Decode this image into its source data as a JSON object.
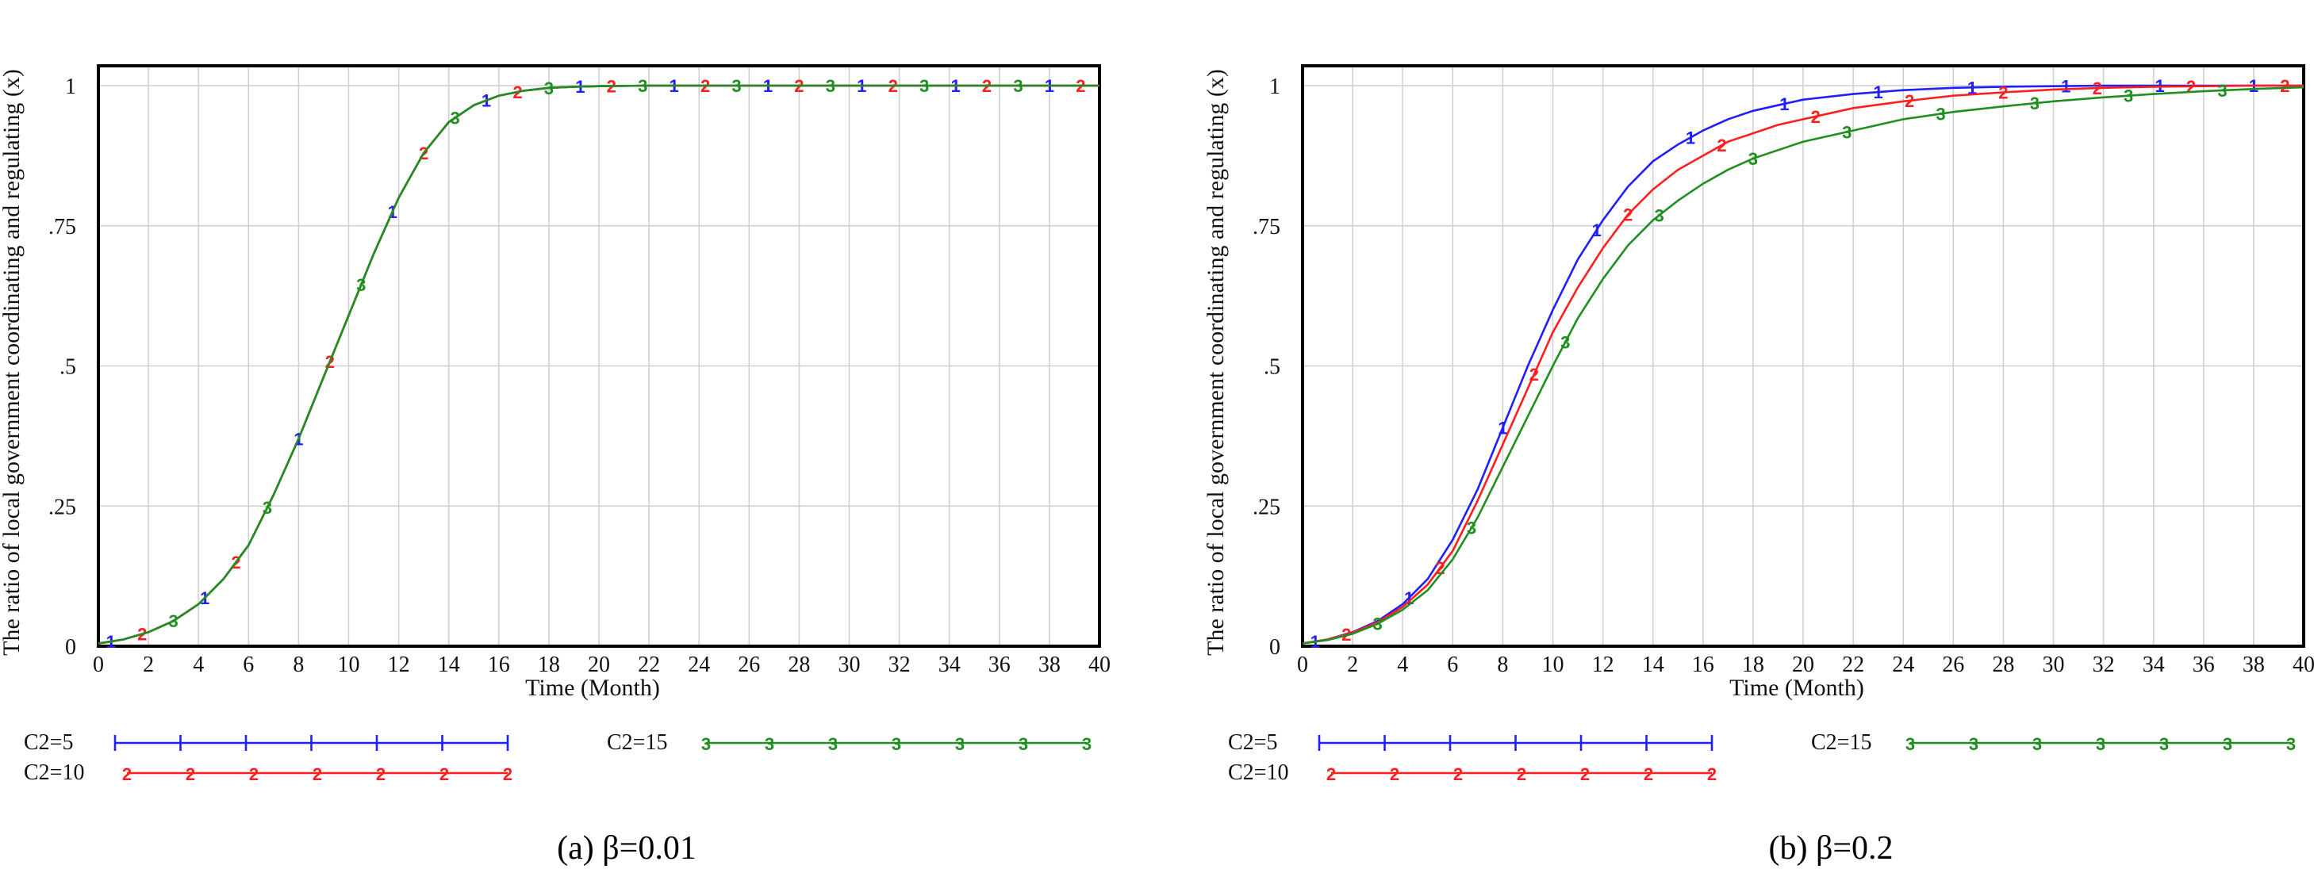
{
  "chart_data": [
    {
      "type": "line",
      "caption": "(a) β=0.01",
      "xlabel": "Time (Month)",
      "ylabel": "The ratio of local government coordinating and regulating (x)",
      "xlim": [
        0,
        40
      ],
      "ylim": [
        0,
        1
      ],
      "x_ticks": [
        "0",
        "2",
        "4",
        "6",
        "8",
        "10",
        "12",
        "14",
        "16",
        "18",
        "20",
        "22",
        "24",
        "26",
        "28",
        "30",
        "32",
        "34",
        "36",
        "38",
        "40"
      ],
      "y_ticks": [
        "0",
        ".25",
        ".5",
        ".75",
        "1"
      ],
      "grid": true,
      "legend_position": "bottom",
      "series": [
        {
          "name": "C2=5",
          "marker": "1",
          "color": "#1f1fff",
          "x": [
            0,
            1,
            2,
            3,
            4,
            5,
            6,
            7,
            8,
            9,
            10,
            11,
            12,
            13,
            14,
            15,
            16,
            17,
            18,
            19,
            20,
            22,
            24,
            26,
            28,
            30,
            32,
            34,
            36,
            38,
            40
          ],
          "y": [
            0.005,
            0.012,
            0.025,
            0.045,
            0.075,
            0.12,
            0.18,
            0.27,
            0.37,
            0.48,
            0.59,
            0.7,
            0.8,
            0.88,
            0.935,
            0.965,
            0.982,
            0.991,
            0.996,
            0.998,
            0.999,
            1,
            1,
            1,
            1,
            1,
            1,
            1,
            1,
            1,
            1
          ]
        },
        {
          "name": "C2=10",
          "marker": "2",
          "color": "#ff1f1f",
          "x": [
            0,
            1,
            2,
            3,
            4,
            5,
            6,
            7,
            8,
            9,
            10,
            11,
            12,
            13,
            14,
            15,
            16,
            17,
            18,
            19,
            20,
            22,
            24,
            26,
            28,
            30,
            32,
            34,
            36,
            38,
            40
          ],
          "y": [
            0.005,
            0.012,
            0.025,
            0.045,
            0.075,
            0.12,
            0.18,
            0.27,
            0.37,
            0.48,
            0.59,
            0.7,
            0.8,
            0.88,
            0.935,
            0.965,
            0.982,
            0.991,
            0.996,
            0.998,
            0.999,
            1,
            1,
            1,
            1,
            1,
            1,
            1,
            1,
            1,
            1
          ]
        },
        {
          "name": "C2=15",
          "marker": "3",
          "color": "#1f8f1f",
          "x": [
            0,
            1,
            2,
            3,
            4,
            5,
            6,
            7,
            8,
            9,
            10,
            11,
            12,
            13,
            14,
            15,
            16,
            17,
            18,
            19,
            20,
            22,
            24,
            26,
            28,
            30,
            32,
            34,
            36,
            38,
            40
          ],
          "y": [
            0.005,
            0.012,
            0.025,
            0.045,
            0.075,
            0.12,
            0.18,
            0.27,
            0.37,
            0.48,
            0.59,
            0.7,
            0.8,
            0.88,
            0.935,
            0.965,
            0.982,
            0.991,
            0.996,
            0.998,
            0.999,
            1,
            1,
            1,
            1,
            1,
            1,
            1,
            1,
            1,
            1
          ]
        }
      ]
    },
    {
      "type": "line",
      "caption": "(b) β=0.2",
      "xlabel": "Time (Month)",
      "ylabel": "The ratio of local government coordinating and regulating (x)",
      "xlim": [
        0,
        40
      ],
      "ylim": [
        0,
        1
      ],
      "x_ticks": [
        "0",
        "2",
        "4",
        "6",
        "8",
        "10",
        "12",
        "14",
        "16",
        "18",
        "20",
        "22",
        "24",
        "26",
        "28",
        "30",
        "32",
        "34",
        "36",
        "38",
        "40"
      ],
      "y_ticks": [
        "0",
        ".25",
        ".5",
        ".75",
        "1"
      ],
      "grid": true,
      "legend_position": "bottom",
      "series": [
        {
          "name": "C2=5",
          "marker": "1",
          "color": "#1f1fff",
          "x": [
            0,
            1,
            2,
            3,
            4,
            5,
            6,
            7,
            8,
            9,
            10,
            11,
            12,
            13,
            14,
            15,
            16,
            17,
            18,
            19,
            20,
            22,
            24,
            26,
            28,
            30,
            32,
            34,
            36,
            38,
            40
          ],
          "y": [
            0.005,
            0.012,
            0.025,
            0.045,
            0.075,
            0.12,
            0.19,
            0.28,
            0.39,
            0.5,
            0.6,
            0.69,
            0.76,
            0.82,
            0.865,
            0.895,
            0.92,
            0.94,
            0.955,
            0.965,
            0.975,
            0.985,
            0.992,
            0.996,
            0.998,
            0.999,
            1,
            1,
            1,
            1,
            1
          ]
        },
        {
          "name": "C2=10",
          "marker": "2",
          "color": "#ff1f1f",
          "x": [
            0,
            1,
            2,
            3,
            4,
            5,
            6,
            7,
            8,
            9,
            10,
            11,
            12,
            13,
            14,
            15,
            16,
            17,
            18,
            19,
            20,
            22,
            24,
            26,
            28,
            30,
            32,
            34,
            36,
            38,
            40
          ],
          "y": [
            0.005,
            0.012,
            0.024,
            0.043,
            0.07,
            0.11,
            0.17,
            0.26,
            0.36,
            0.46,
            0.56,
            0.64,
            0.71,
            0.77,
            0.815,
            0.85,
            0.875,
            0.9,
            0.915,
            0.93,
            0.94,
            0.96,
            0.972,
            0.982,
            0.988,
            0.993,
            0.996,
            0.998,
            0.999,
            1,
            1
          ]
        },
        {
          "name": "C2=15",
          "marker": "3",
          "color": "#1f8f1f",
          "x": [
            0,
            1,
            2,
            3,
            4,
            5,
            6,
            7,
            8,
            9,
            10,
            11,
            12,
            13,
            14,
            15,
            16,
            17,
            18,
            19,
            20,
            22,
            24,
            26,
            28,
            30,
            32,
            34,
            36,
            38,
            40
          ],
          "y": [
            0.005,
            0.011,
            0.022,
            0.04,
            0.065,
            0.1,
            0.155,
            0.23,
            0.32,
            0.41,
            0.5,
            0.585,
            0.655,
            0.715,
            0.76,
            0.795,
            0.825,
            0.85,
            0.87,
            0.885,
            0.9,
            0.92,
            0.94,
            0.953,
            0.963,
            0.972,
            0.979,
            0.985,
            0.99,
            0.994,
            0.997
          ]
        }
      ]
    }
  ]
}
